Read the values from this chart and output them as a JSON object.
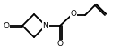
{
  "bg_color": "#ffffff",
  "bond_color": "#000000",
  "atom_color": "#000000",
  "line_width": 1.3,
  "font_size": 6.5,
  "figsize": [
    1.34,
    0.61
  ],
  "dpi": 100,
  "xlim": [
    0,
    134
  ],
  "ylim": [
    0,
    61
  ]
}
